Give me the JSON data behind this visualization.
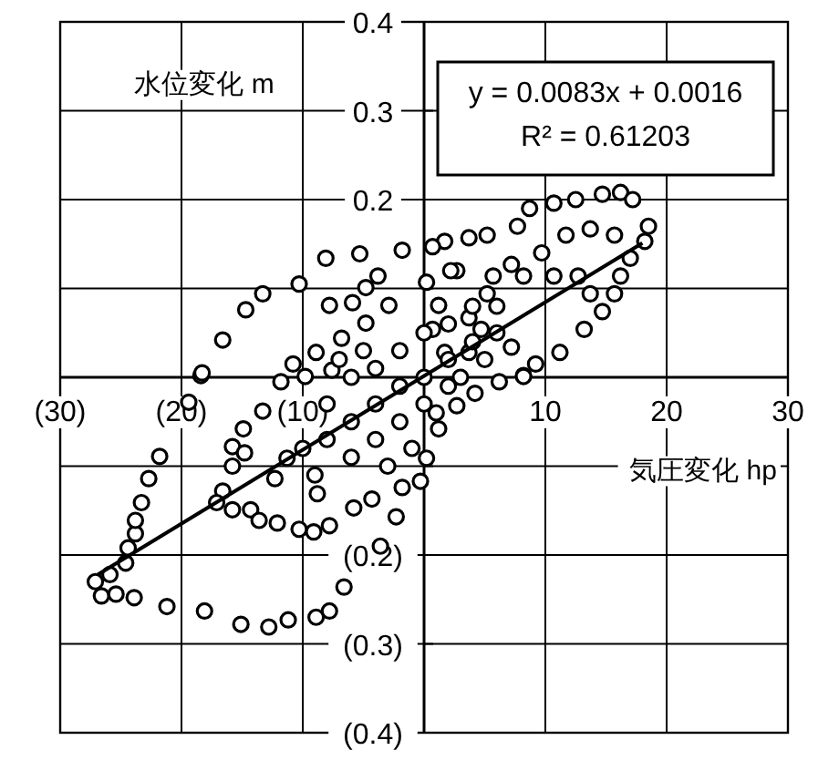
{
  "chart_data": {
    "type": "scatter",
    "xlabel": "気圧変化 hp",
    "ylabel": "水位変化 m",
    "annotations": [
      "y = 0.0083x + 0.0016",
      "R² = 0.61203"
    ],
    "xlim": [
      -30,
      30
    ],
    "ylim": [
      -0.4,
      0.4
    ],
    "xticks": [
      {
        "value": -30,
        "label": "(30)"
      },
      {
        "value": -20,
        "label": "(20)"
      },
      {
        "value": -10,
        "label": "(10)"
      },
      {
        "value": 0,
        "label": null
      },
      10,
      20,
      30
    ],
    "yticks": [
      {
        "value": -0.4,
        "label": "(0.4)"
      },
      {
        "value": -0.3,
        "label": "(0.3)"
      },
      {
        "value": -0.2,
        "label": "(0.2)"
      },
      {
        "value": -0.1,
        "label": null
      },
      {
        "value": 0,
        "label": null
      },
      {
        "value": 0.1,
        "label": null
      },
      0.2,
      0.3,
      0.4
    ],
    "grid": true,
    "marker": "circle",
    "series": [
      {
        "type": "scatter",
        "color": "#000000",
        "x": [
          -27.1,
          -26.6,
          -25.4,
          -23.9,
          -21.2,
          -18.1,
          -15.1,
          -12.8,
          -11.2,
          -8.9,
          -7.8,
          -6.6,
          -3.6,
          -25.9,
          -24.6,
          -24.4,
          -23.8,
          -23.8,
          -23.3,
          -22.7,
          -21.8,
          -19.4,
          -18.4,
          -18.3,
          -16.6,
          -14.7,
          -13.3,
          -10.3,
          -8.1,
          -5.3,
          -1.8,
          16.2,
          14.7,
          12.5,
          10.7,
          8.7,
          7.7,
          17.2,
          18.5,
          18.2,
          17.0,
          16.2,
          15.7,
          14.7,
          13.2,
          11.2,
          9.2,
          8.2,
          13.7,
          15.7,
          11.7,
          9.7,
          5.2,
          3.7,
          1.7,
          2.7,
          5.7,
          8.2,
          10.7,
          12.7,
          13.7,
          -14.9,
          -15.8,
          -15.8,
          -16.6,
          -17.1,
          -15.8,
          -14.3,
          -13.6,
          -12.1,
          -10.3,
          -9.1,
          -7.8,
          -8.8,
          -5.8,
          -4.3,
          -2.3,
          -1.8,
          -11.3,
          -12.3,
          -14.8,
          -11.8,
          -13.3,
          -9.8,
          -7.8,
          -5.9,
          -4.8,
          -3.8,
          -6.8,
          -8.9,
          -4.8,
          -2.9,
          -10.8,
          -7.6,
          0.7,
          0.2,
          1.2,
          3.7,
          4.7,
          7.2,
          3.7,
          1.7,
          0.7,
          2.2,
          7.2,
          5.2,
          8.2,
          6.2,
          4.2,
          2.7,
          1.2,
          0.2,
          -0.3,
          -6,
          -4,
          -2,
          0,
          2,
          4,
          6,
          -8,
          -10,
          -6,
          -4,
          -2,
          0,
          2,
          -8,
          -4,
          -2,
          0,
          2,
          4,
          -6,
          -9,
          -3,
          -1,
          1,
          3,
          5,
          6,
          -5,
          -7
        ],
        "values": [
          -0.23,
          -0.246,
          -0.244,
          -0.248,
          -0.258,
          -0.263,
          -0.278,
          -0.281,
          -0.273,
          -0.27,
          -0.263,
          -0.236,
          -0.19,
          -0.222,
          -0.209,
          -0.192,
          -0.176,
          -0.161,
          -0.141,
          -0.114,
          -0.089,
          -0.028,
          0.002,
          0.005,
          0.042,
          0.076,
          0.094,
          0.105,
          0.134,
          0.139,
          0.143,
          0.208,
          0.206,
          0.2,
          0.196,
          0.19,
          0.17,
          0.2,
          0.17,
          0.153,
          0.134,
          0.114,
          0.094,
          0.074,
          0.054,
          0.028,
          0.015,
          0.002,
          0.167,
          0.16,
          0.16,
          0.14,
          0.16,
          0.157,
          0.153,
          0.12,
          0.114,
          0.114,
          0.114,
          0.114,
          0.094,
          -0.058,
          -0.078,
          -0.1,
          -0.128,
          -0.141,
          -0.149,
          -0.149,
          -0.161,
          -0.164,
          -0.171,
          -0.174,
          -0.167,
          -0.131,
          -0.147,
          -0.137,
          -0.157,
          -0.124,
          -0.091,
          -0.114,
          -0.085,
          -0.005,
          -0.038,
          0.001,
          0.081,
          0.084,
          0.101,
          0.114,
          0.044,
          0.028,
          0.061,
          0.081,
          0.015,
          0.008,
          0.147,
          0.107,
          0.081,
          0.067,
          0.054,
          0.034,
          0.028,
          0.028,
          0.054,
          0.12,
          0.127,
          0.094,
          0.001,
          -0.005,
          -0.018,
          -0.032,
          -0.058,
          -0.091,
          -0.117,
          -0.05,
          -0.03,
          -0.01,
          0.0,
          0.02,
          0.04,
          0.05,
          -0.07,
          -0.08,
          -0.09,
          -0.07,
          -0.05,
          -0.03,
          -0.01,
          -0.03,
          0.01,
          0.03,
          0.05,
          0.06,
          0.08,
          0.0,
          -0.11,
          -0.1,
          -0.08,
          -0.04,
          0.0,
          0.02,
          0.08,
          0.03,
          0.02
        ]
      },
      {
        "type": "line",
        "color": "#000000",
        "marker": "none",
        "line_style": "solid",
        "x": [
          -26.9,
          18
        ],
        "values": [
          -0.222,
          0.151
        ]
      }
    ]
  }
}
